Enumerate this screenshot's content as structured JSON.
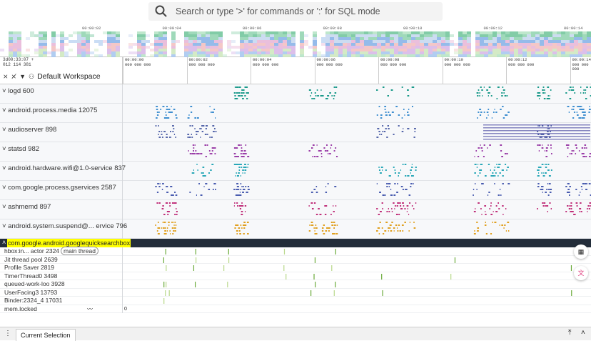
{
  "search": {
    "placeholder": "Search or type '>' for commands or ':' for SQL mode"
  },
  "overview": {
    "ticks": [
      "00:00:02",
      "00:00:04",
      "00:00:06",
      "00:00:08",
      "00:00:10",
      "00:00:12",
      "00:00:14"
    ]
  },
  "timeline": {
    "offset_line1": "3d00:33:07 +",
    "offset_line2": "012 114 381",
    "ticks": [
      [
        "00:00:00",
        "000 000 000"
      ],
      [
        "00:00:02",
        "000 000 000"
      ],
      [
        "00:00:04",
        "000 000 000"
      ],
      [
        "00:00:06",
        "000 000 000"
      ],
      [
        "00:00:08",
        "000 000 000"
      ],
      [
        "00:00:10",
        "000 000 000"
      ],
      [
        "00:00:12",
        "000 000 000"
      ],
      [
        "00:00:14",
        "000 000 000"
      ]
    ]
  },
  "workspace": {
    "name": "Default Workspace"
  },
  "tracks": [
    "logd 600",
    "android.process.media 12075",
    "audioserver 898",
    "statsd 982",
    "android.hardware.wifi@1.0-service 837",
    "com.google.process.gservices 2587",
    "ashmemd 897",
    "android.system.suspend@... ervice 796"
  ],
  "group": {
    "title": "com.google.android.googlequicksearchbox"
  },
  "threads": [
    "hbox:in... actor 2324",
    "Jit thread pool 2639",
    "Profile Saver 2819",
    "TimerThread0 3498",
    "queued-work-loo 3928",
    "UserFacing3 13793",
    "Binder:2324_4 17031",
    "mem.locked"
  ],
  "main_thread_badge": "main thread",
  "mem_value": "0",
  "bottom": {
    "tab": "Current Selection"
  },
  "colors": {
    "track_colors": [
      "#1a9a8a",
      "#3f8fd0",
      "#5566aa",
      "#9b3fa8",
      "#2aa8b8",
      "#4a5db0",
      "#c0307a",
      "#e0a020"
    ],
    "accent": "#232d3a"
  }
}
